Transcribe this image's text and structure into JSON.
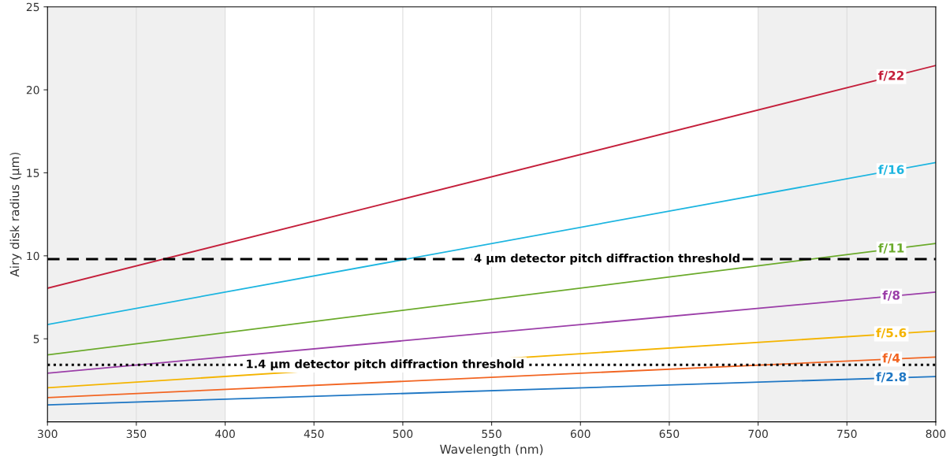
{
  "chart_data": {
    "type": "line",
    "xlabel": "Wavelength (nm)",
    "ylabel": "Airy disk radius (µm)",
    "x": [
      300,
      800
    ],
    "series": [
      {
        "name": "f/22",
        "color": "#c41e3a",
        "values": [
          8.05,
          21.47
        ]
      },
      {
        "name": "f/16",
        "color": "#1cb5e0",
        "values": [
          5.86,
          15.62
        ]
      },
      {
        "name": "f/11",
        "color": "#6aaa2a",
        "values": [
          4.03,
          10.74
        ]
      },
      {
        "name": "f/8",
        "color": "#9b3ea8",
        "values": [
          2.93,
          7.81
        ]
      },
      {
        "name": "f/5.6",
        "color": "#f4b400",
        "values": [
          2.05,
          5.47
        ]
      },
      {
        "name": "f/4",
        "color": "#f26522",
        "values": [
          1.46,
          3.9
        ]
      },
      {
        "name": "f/2.8",
        "color": "#1f77c4",
        "values": [
          1.02,
          2.73
        ]
      }
    ],
    "xlim": [
      300,
      800
    ],
    "xticks": [
      300,
      350,
      400,
      450,
      500,
      550,
      600,
      650,
      700,
      750,
      800
    ],
    "ylim": [
      0,
      25
    ],
    "yticks": [
      5,
      10,
      15,
      20,
      25
    ],
    "ref_lines": [
      {
        "axis": "y",
        "value": 9.8,
        "label": "4 µm detector pitch diffraction threshold",
        "color": "#000000",
        "line_style": "dashed"
      },
      {
        "axis": "y",
        "value": 3.43,
        "label": "1.4 µm detector pitch diffraction threshold",
        "color": "#000000",
        "line_style": "dotted"
      }
    ],
    "bands": [
      {
        "axis": "x",
        "from": 300,
        "to": 400,
        "color": "#f0f0f0"
      },
      {
        "axis": "x",
        "from": 700,
        "to": 800,
        "color": "#f0f0f0"
      }
    ],
    "grid": "x",
    "legend": false,
    "marker": "none",
    "line_style": "solid"
  }
}
